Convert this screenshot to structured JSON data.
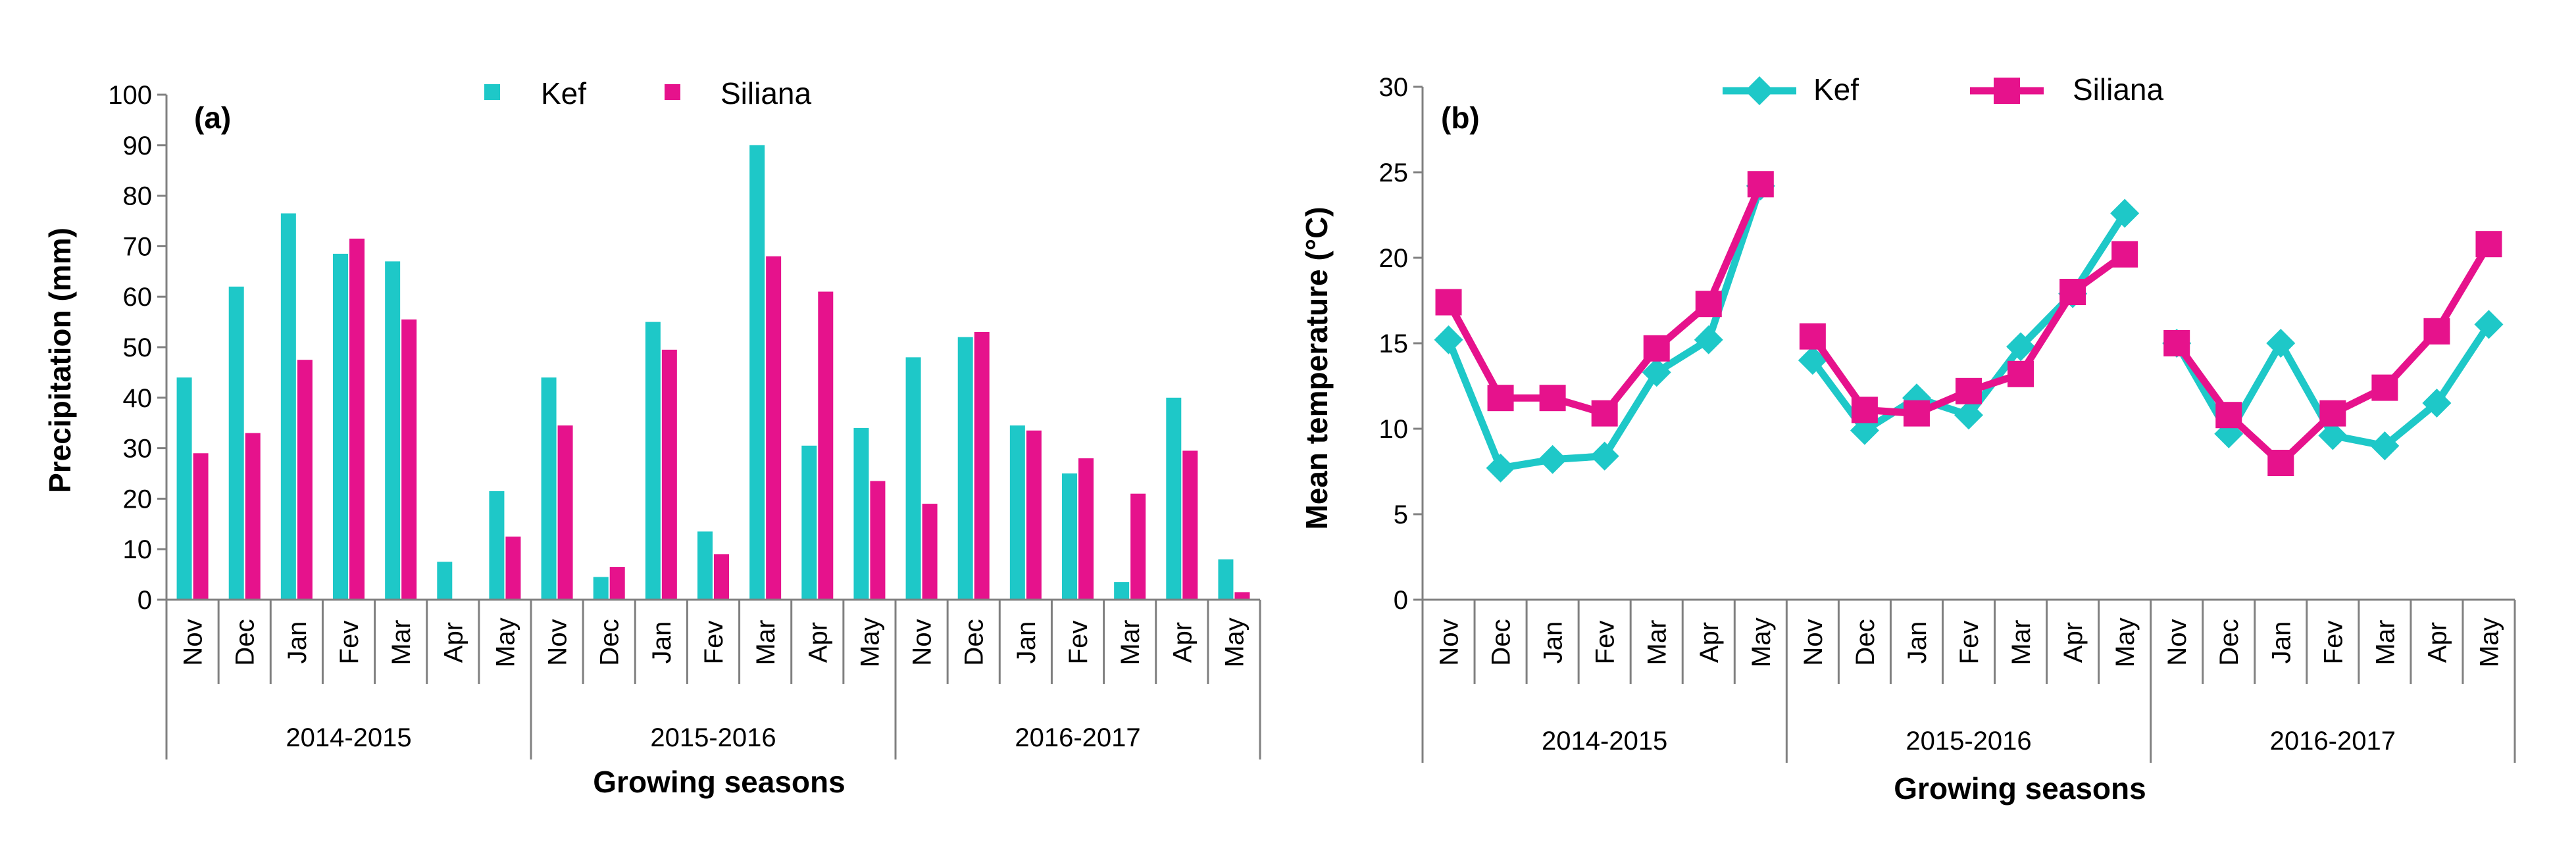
{
  "chart_data": [
    {
      "panel": "(a)",
      "type": "bar",
      "ylabel": "Precipitation (mm)",
      "xlabel": "Growing seasons",
      "ylim": [
        0,
        100
      ],
      "yticks": [
        0,
        10,
        20,
        30,
        40,
        50,
        60,
        70,
        80,
        90,
        100
      ],
      "seasons": [
        {
          "label": "2014-2015",
          "months": [
            "Nov",
            "Dec",
            "Jan",
            "Fev",
            "Mar",
            "Apr",
            "May"
          ]
        },
        {
          "label": "2015-2016",
          "months": [
            "Nov",
            "Dec",
            "Jan",
            "Fev",
            "Mar",
            "Apr",
            "May"
          ]
        },
        {
          "label": "2016-2017",
          "months": [
            "Nov",
            "Dec",
            "Jan",
            "Fev",
            "Mar",
            "Apr",
            "May"
          ]
        }
      ],
      "series": [
        {
          "name": "Kef",
          "color": "#1ec8c8",
          "values": [
            44,
            62,
            76.5,
            68.5,
            67,
            7.5,
            21.5,
            44,
            4.5,
            55,
            13.5,
            90,
            30.5,
            34,
            48,
            52,
            34.5,
            25,
            3.5,
            40,
            8
          ]
        },
        {
          "name": "Siliana",
          "color": "#e6128c",
          "values": [
            29,
            33,
            47.5,
            71.5,
            55.5,
            0,
            12.5,
            34.5,
            6.5,
            49.5,
            9,
            68,
            61,
            23.5,
            19,
            53,
            33.5,
            28,
            21,
            29.5,
            1.5
          ]
        }
      ]
    },
    {
      "panel": "(b)",
      "type": "line",
      "ylabel": "Mean temperature (°C)",
      "xlabel": "Growing seasons",
      "ylim": [
        0,
        30
      ],
      "yticks": [
        0,
        5,
        10,
        15,
        20,
        25,
        30
      ],
      "seasons": [
        {
          "label": "2014-2015",
          "months": [
            "Nov",
            "Dec",
            "Jan",
            "Fev",
            "Mar",
            "Apr",
            "May"
          ]
        },
        {
          "label": "2015-2016",
          "months": [
            "Nov",
            "Dec",
            "Jan",
            "Fev",
            "Mar",
            "Apr",
            "May"
          ]
        },
        {
          "label": "2016-2017",
          "months": [
            "Nov",
            "Dec",
            "Jan",
            "Fev",
            "Mar",
            "Apr",
            "May"
          ]
        }
      ],
      "series": [
        {
          "name": "Kef",
          "color": "#1ec8c8",
          "marker": "diamond",
          "values": [
            [
              15.2,
              7.7,
              8.2,
              8.4,
              13.3,
              15.2,
              24.2
            ],
            [
              14,
              9.9,
              11.8,
              10.8,
              14.8,
              17.9,
              22.6
            ],
            [
              15,
              9.7,
              15,
              9.6,
              9,
              11.5,
              16.1
            ]
          ]
        },
        {
          "name": "Siliana",
          "color": "#e6128c",
          "marker": "square",
          "values": [
            [
              17.4,
              11.8,
              11.8,
              10.9,
              14.7,
              17.3,
              24.3
            ],
            [
              15.4,
              11.1,
              10.9,
              12.2,
              13.2,
              18,
              20.2
            ],
            [
              15,
              10.8,
              8,
              10.9,
              12.4,
              15.7,
              20.8
            ]
          ]
        }
      ]
    }
  ]
}
